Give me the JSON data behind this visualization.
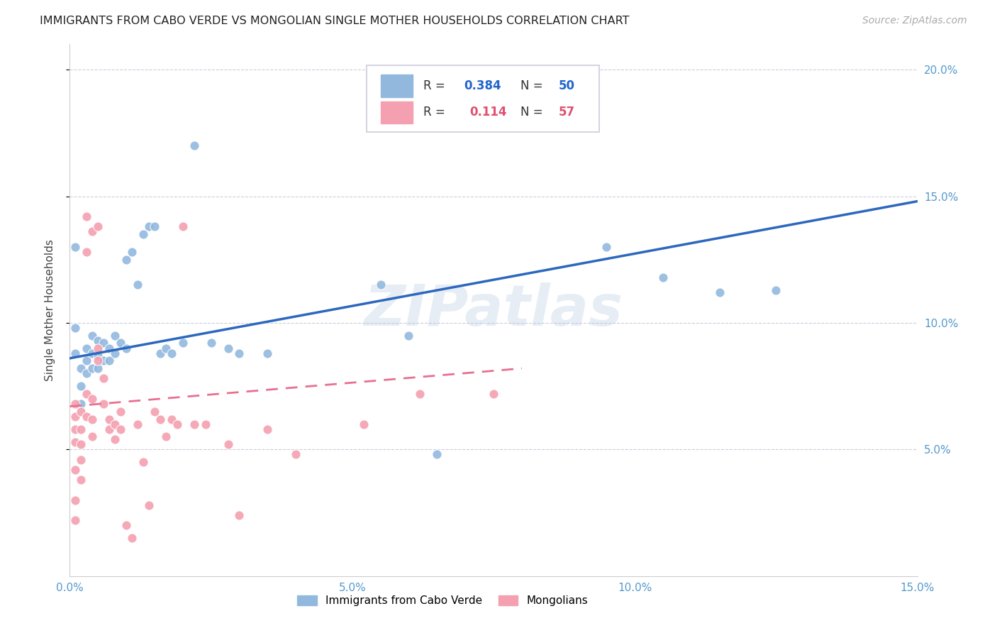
{
  "title": "IMMIGRANTS FROM CABO VERDE VS MONGOLIAN SINGLE MOTHER HOUSEHOLDS CORRELATION CHART",
  "source": "Source: ZipAtlas.com",
  "ylabel": "Single Mother Households",
  "xmin": 0.0,
  "xmax": 0.15,
  "ymin": 0.0,
  "ymax": 0.21,
  "right_ytick_labels": [
    "20.0%",
    "15.0%",
    "10.0%",
    "5.0%"
  ],
  "right_ytick_values": [
    0.2,
    0.15,
    0.1,
    0.05
  ],
  "xtick_labels": [
    "0.0%",
    "5.0%",
    "10.0%",
    "15.0%"
  ],
  "xtick_values": [
    0.0,
    0.05,
    0.1,
    0.15
  ],
  "blue_color": "#92b8de",
  "pink_color": "#f4a0b0",
  "blue_line_color": "#2c68be",
  "pink_line_color": "#e87090",
  "background_color": "#ffffff",
  "grid_color": "#ccccdd",
  "blue_trend_x": [
    0.0,
    0.15
  ],
  "blue_trend_y": [
    0.086,
    0.148
  ],
  "pink_trend_x": [
    0.0,
    0.08
  ],
  "pink_trend_y": [
    0.067,
    0.082
  ],
  "blue_dots_x": [
    0.001,
    0.001,
    0.001,
    0.002,
    0.002,
    0.002,
    0.003,
    0.003,
    0.003,
    0.004,
    0.004,
    0.004,
    0.005,
    0.005,
    0.005,
    0.006,
    0.006,
    0.007,
    0.007,
    0.008,
    0.008,
    0.009,
    0.01,
    0.01,
    0.011,
    0.012,
    0.013,
    0.014,
    0.015,
    0.016,
    0.017,
    0.018,
    0.02,
    0.022,
    0.025,
    0.028,
    0.03,
    0.035,
    0.055,
    0.06,
    0.065,
    0.095,
    0.105,
    0.115,
    0.125
  ],
  "blue_dots_y": [
    0.098,
    0.13,
    0.088,
    0.082,
    0.075,
    0.068,
    0.09,
    0.085,
    0.08,
    0.095,
    0.088,
    0.082,
    0.093,
    0.087,
    0.082,
    0.092,
    0.085,
    0.09,
    0.085,
    0.095,
    0.088,
    0.092,
    0.09,
    0.125,
    0.128,
    0.115,
    0.135,
    0.138,
    0.138,
    0.088,
    0.09,
    0.088,
    0.092,
    0.17,
    0.092,
    0.09,
    0.088,
    0.088,
    0.115,
    0.095,
    0.048,
    0.13,
    0.118,
    0.112,
    0.113
  ],
  "pink_dots_x": [
    0.001,
    0.001,
    0.001,
    0.001,
    0.001,
    0.001,
    0.001,
    0.002,
    0.002,
    0.002,
    0.002,
    0.002,
    0.003,
    0.003,
    0.003,
    0.003,
    0.004,
    0.004,
    0.004,
    0.004,
    0.005,
    0.005,
    0.005,
    0.006,
    0.006,
    0.007,
    0.007,
    0.008,
    0.008,
    0.009,
    0.009,
    0.01,
    0.011,
    0.012,
    0.013,
    0.014,
    0.015,
    0.016,
    0.017,
    0.018,
    0.019,
    0.02,
    0.022,
    0.024,
    0.028,
    0.03,
    0.035,
    0.04,
    0.052,
    0.062,
    0.075
  ],
  "pink_dots_y": [
    0.068,
    0.063,
    0.058,
    0.053,
    0.042,
    0.03,
    0.022,
    0.065,
    0.058,
    0.052,
    0.046,
    0.038,
    0.142,
    0.128,
    0.072,
    0.063,
    0.136,
    0.07,
    0.062,
    0.055,
    0.138,
    0.09,
    0.085,
    0.078,
    0.068,
    0.062,
    0.058,
    0.06,
    0.054,
    0.065,
    0.058,
    0.02,
    0.015,
    0.06,
    0.045,
    0.028,
    0.065,
    0.062,
    0.055,
    0.062,
    0.06,
    0.138,
    0.06,
    0.06,
    0.052,
    0.024,
    0.058,
    0.048,
    0.06,
    0.072,
    0.072
  ],
  "watermark": "ZIPatlas",
  "title_fontsize": 11.5,
  "axis_label_fontsize": 11,
  "tick_fontsize": 11,
  "legend_fontsize": 12,
  "source_fontsize": 10
}
